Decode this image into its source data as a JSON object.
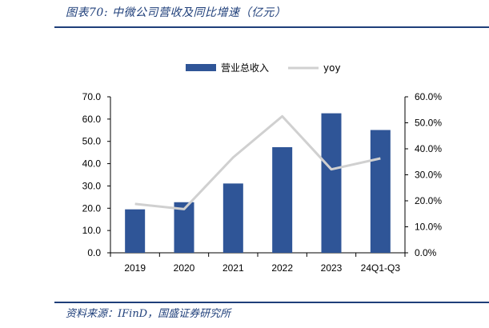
{
  "header": {
    "figure_title": "图表70:  中微公司营收及同比增速（亿元）"
  },
  "footer": {
    "source": "资料来源：IFinD，国盛证券研究所"
  },
  "colors": {
    "bar": "#2f5597",
    "line": "#d0d0d0",
    "rule": "#1f3f7a"
  },
  "chart_data": {
    "type": "bar",
    "categories": [
      "2019",
      "2020",
      "2021",
      "2022",
      "2023",
      "24Q1-Q3"
    ],
    "series": [
      {
        "name": "营业总收入",
        "type": "bar",
        "axis": "left",
        "values": [
          19.5,
          22.7,
          31.1,
          47.4,
          62.6,
          55.1
        ]
      },
      {
        "name": "yoy",
        "type": "line",
        "axis": "right",
        "values": [
          18.8,
          16.8,
          36.7,
          52.5,
          32.1,
          36.3
        ]
      }
    ],
    "left_axis": {
      "ylim": [
        0,
        70
      ],
      "ticks": [
        "0.0",
        "10.0",
        "20.0",
        "30.0",
        "40.0",
        "50.0",
        "60.0",
        "70.0"
      ]
    },
    "right_axis": {
      "ylim": [
        0,
        60
      ],
      "ticks": [
        "0.0%",
        "10.0%",
        "20.0%",
        "30.0%",
        "40.0%",
        "50.0%",
        "60.0%"
      ]
    },
    "legend_position": "top-center",
    "grid": false
  }
}
